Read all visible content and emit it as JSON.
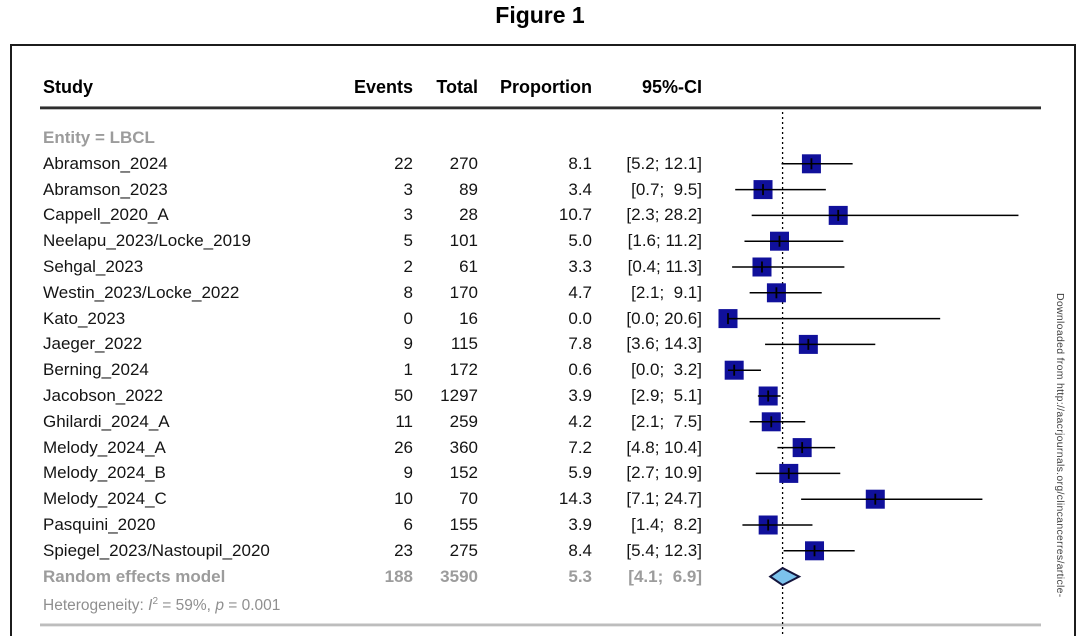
{
  "title": "Figure 1",
  "watermark": "Downloaded from http://aacrjournals.org/clincancerres/article-",
  "table": {
    "headers": {
      "study": "Study",
      "events": "Events",
      "total": "Total",
      "proportion": "Proportion",
      "ci": "95%-CI"
    }
  },
  "colors": {
    "square": "#10109b",
    "diamond_fill": "#7cc2ec",
    "diamond_border": "#14143c",
    "ci_line": "#000000",
    "subgroup_gray": "#9c9c9c"
  },
  "chart_data": {
    "type": "forest",
    "x_unit": "proportion (%)",
    "ref_line": 5.3,
    "x_min": 0,
    "x_max_visible": 28.2,
    "subgroup_label": "Entity = LBCL",
    "studies": [
      {
        "name": "Abramson_2024",
        "events": "22",
        "total": "270",
        "proportion": "8.1",
        "ci": "[5.2; 12.1]",
        "est": 8.1,
        "lo": 5.2,
        "hi": 12.1
      },
      {
        "name": "Abramson_2023",
        "events": "3",
        "total": "89",
        "proportion": "3.4",
        "ci": "[0.7;  9.5]",
        "est": 3.4,
        "lo": 0.7,
        "hi": 9.5
      },
      {
        "name": "Cappell_2020_A",
        "events": "3",
        "total": "28",
        "proportion": "10.7",
        "ci": "[2.3; 28.2]",
        "est": 10.7,
        "lo": 2.3,
        "hi": 28.2
      },
      {
        "name": "Neelapu_2023/Locke_2019",
        "events": "5",
        "total": "101",
        "proportion": "5.0",
        "ci": "[1.6; 11.2]",
        "est": 5.0,
        "lo": 1.6,
        "hi": 11.2
      },
      {
        "name": "Sehgal_2023",
        "events": "2",
        "total": "61",
        "proportion": "3.3",
        "ci": "[0.4; 11.3]",
        "est": 3.3,
        "lo": 0.4,
        "hi": 11.3
      },
      {
        "name": "Westin_2023/Locke_2022",
        "events": "8",
        "total": "170",
        "proportion": "4.7",
        "ci": "[2.1;  9.1]",
        "est": 4.7,
        "lo": 2.1,
        "hi": 9.1
      },
      {
        "name": "Kato_2023",
        "events": "0",
        "total": "16",
        "proportion": "0.0",
        "ci": "[0.0; 20.6]",
        "est": 0.0,
        "lo": 0.0,
        "hi": 20.6
      },
      {
        "name": "Jaeger_2022",
        "events": "9",
        "total": "115",
        "proportion": "7.8",
        "ci": "[3.6; 14.3]",
        "est": 7.8,
        "lo": 3.6,
        "hi": 14.3
      },
      {
        "name": "Berning_2024",
        "events": "1",
        "total": "172",
        "proportion": "0.6",
        "ci": "[0.0;  3.2]",
        "est": 0.6,
        "lo": 0.0,
        "hi": 3.2
      },
      {
        "name": "Jacobson_2022",
        "events": "50",
        "total": "1297",
        "proportion": "3.9",
        "ci": "[2.9;  5.1]",
        "est": 3.9,
        "lo": 2.9,
        "hi": 5.1
      },
      {
        "name": "Ghilardi_2024_A",
        "events": "11",
        "total": "259",
        "proportion": "4.2",
        "ci": "[2.1;  7.5]",
        "est": 4.2,
        "lo": 2.1,
        "hi": 7.5
      },
      {
        "name": "Melody_2024_A",
        "events": "26",
        "total": "360",
        "proportion": "7.2",
        "ci": "[4.8; 10.4]",
        "est": 7.2,
        "lo": 4.8,
        "hi": 10.4
      },
      {
        "name": "Melody_2024_B",
        "events": "9",
        "total": "152",
        "proportion": "5.9",
        "ci": "[2.7; 10.9]",
        "est": 5.9,
        "lo": 2.7,
        "hi": 10.9
      },
      {
        "name": "Melody_2024_C",
        "events": "10",
        "total": "70",
        "proportion": "14.3",
        "ci": "[7.1; 24.7]",
        "est": 14.3,
        "lo": 7.1,
        "hi": 24.7
      },
      {
        "name": "Pasquini_2020",
        "events": "6",
        "total": "155",
        "proportion": "3.9",
        "ci": "[1.4;  8.2]",
        "est": 3.9,
        "lo": 1.4,
        "hi": 8.2
      },
      {
        "name": "Spiegel_2023/Nastoupil_2020",
        "events": "23",
        "total": "275",
        "proportion": "8.4",
        "ci": "[5.4; 12.3]",
        "est": 8.4,
        "lo": 5.4,
        "hi": 12.3
      }
    ],
    "summary": {
      "label": "Random effects model",
      "events": "188",
      "total": "3590",
      "proportion": "5.3",
      "ci": "[4.1;  6.9]",
      "est": 5.3,
      "lo": 4.1,
      "hi": 6.9
    },
    "heterogeneity": {
      "prefix": "Heterogeneity: ",
      "i_symbol": "I",
      "i_exponent": "2",
      "i_rest": " = 59%, ",
      "p_symbol": "p",
      "p_rest": " = 0.001"
    }
  }
}
